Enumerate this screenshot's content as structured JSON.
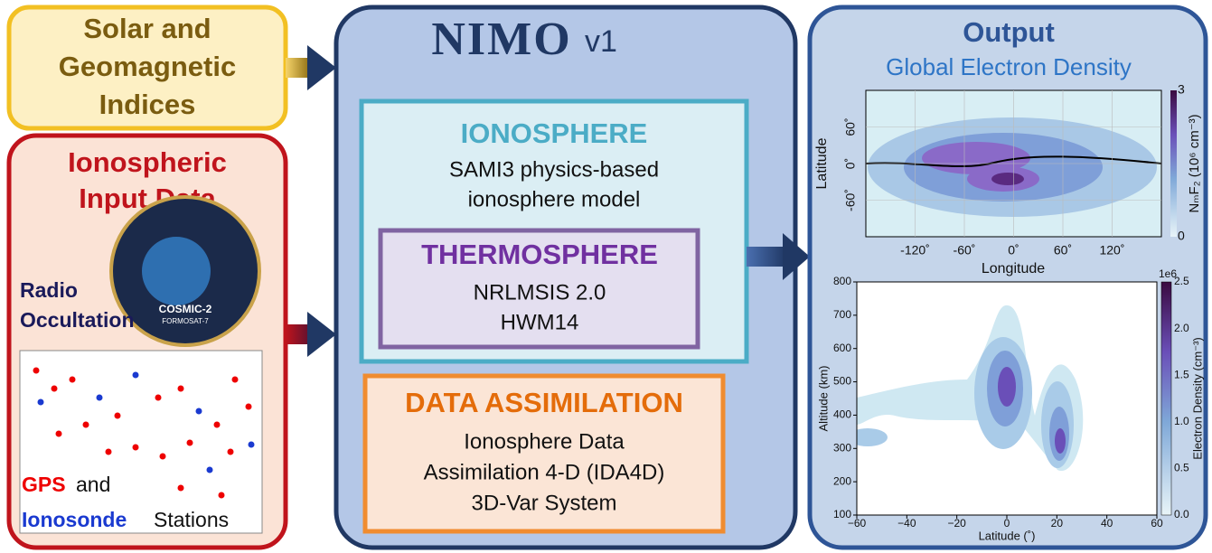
{
  "inputs": {
    "solar": {
      "lines": [
        "Solar and",
        "Geomagnetic",
        "Indices"
      ]
    },
    "ionospheric": {
      "title": [
        "Ionospheric",
        "Input Data"
      ],
      "radio_occultation": [
        "Radio",
        "Occultation"
      ],
      "badge": [
        "COSMIC-2",
        "FORMOSAT-7"
      ],
      "stations": {
        "gps": "GPS",
        "and": "and",
        "ionosonde": "Ionosonde",
        "stations": "Stations"
      }
    }
  },
  "model": {
    "name": "NIMO",
    "version": "v1",
    "ionosphere": {
      "title": "IONOSPHERE",
      "lines": [
        "SAMI3 physics-based",
        "ionosphere model"
      ]
    },
    "thermosphere": {
      "title": "THERMOSPHERE",
      "lines": [
        "NRLMSIS 2.0",
        "HWM14"
      ]
    },
    "data_assimilation": {
      "title": "DATA ASSIMILATION",
      "lines": [
        "Ionosphere Data",
        "Assimilation 4-D (IDA4D)",
        "3D-Var System"
      ]
    }
  },
  "output": {
    "title": "Output",
    "subtitle": "Global Electron Density",
    "map": {
      "xlabel": "Longitude",
      "ylabel": "Latitude",
      "xticks": [
        "-120˚",
        "-60˚",
        "0˚",
        "60˚",
        "120˚"
      ],
      "yticks": [
        "60˚",
        "0˚",
        "-60˚"
      ],
      "colorbar_label": "NₘF₂ (10⁶ cm⁻³)",
      "colorbar_ticks": [
        "3",
        "0"
      ]
    },
    "profile": {
      "xlabel": "Latitude (˚)",
      "ylabel": "Altitude (km)",
      "xticks": [
        "−60",
        "−40",
        "−20",
        "0",
        "20",
        "40",
        "60"
      ],
      "yticks": [
        "100",
        "200",
        "300",
        "400",
        "500",
        "600",
        "700",
        "800"
      ],
      "colorbar_label": "Electron Density (cm⁻³)",
      "colorbar_offset": "1e6",
      "colorbar_ticks": [
        "0.0",
        "0.5",
        "1.0",
        "1.5",
        "2.0",
        "2.5"
      ]
    }
  }
}
